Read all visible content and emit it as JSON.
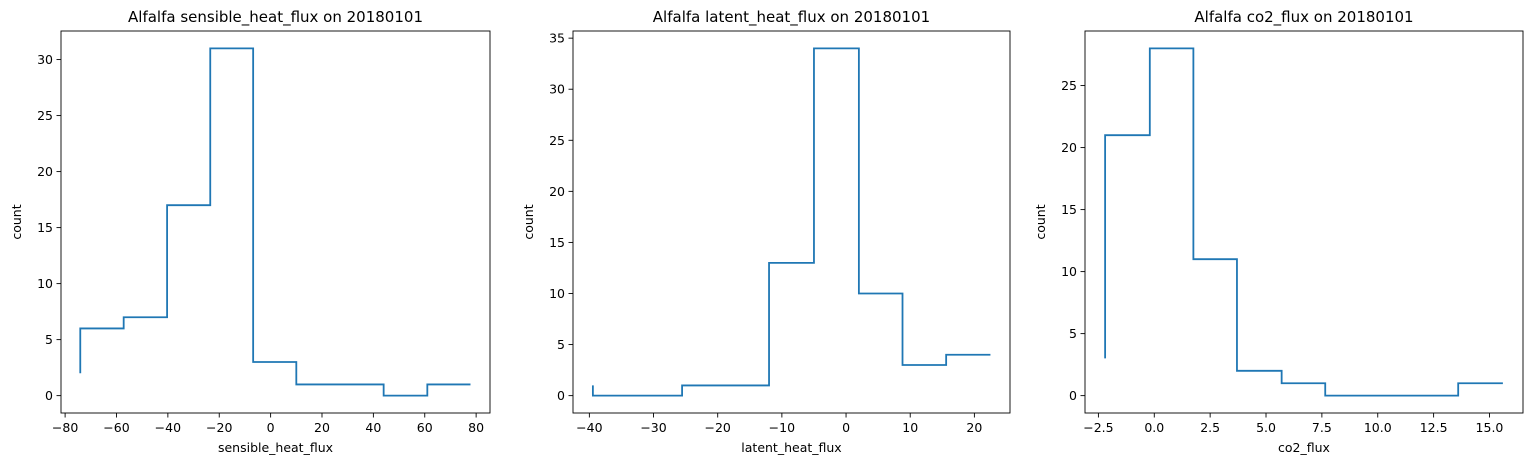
{
  "colors": {
    "line": "#1f77b4"
  },
  "chart_data": [
    {
      "type": "step",
      "title": "Alfalfa sensible_heat_flux on 20180101",
      "xlabel": "sensible_heat_flux",
      "ylabel": "count",
      "xlim": [
        -81.6,
        85.4
      ],
      "ylim": [
        -1.55,
        32.55
      ],
      "xticks": [
        -80,
        -60,
        -40,
        -20,
        0,
        20,
        40,
        60,
        80
      ],
      "xtick_labels": [
        "−80",
        "−60",
        "−40",
        "−20",
        "0",
        "20",
        "40",
        "60",
        "80"
      ],
      "yticks": [
        0,
        5,
        10,
        15,
        20,
        25,
        30
      ],
      "ytick_labels": [
        "0",
        "5",
        "10",
        "15",
        "20",
        "25",
        "30"
      ],
      "points": [
        [
          -74.1,
          2
        ],
        [
          -74.1,
          6
        ],
        [
          -57.2,
          6
        ],
        [
          -57.2,
          7
        ],
        [
          -40.3,
          7
        ],
        [
          -40.3,
          17
        ],
        [
          -23.5,
          17
        ],
        [
          -23.5,
          31
        ],
        [
          -6.8,
          31
        ],
        [
          -6.8,
          3
        ],
        [
          10.0,
          3
        ],
        [
          10.0,
          1
        ],
        [
          27.0,
          1
        ],
        [
          44.0,
          1
        ],
        [
          44.0,
          0
        ],
        [
          61.0,
          0
        ],
        [
          61.0,
          1
        ],
        [
          77.8,
          1
        ]
      ]
    },
    {
      "type": "step",
      "title": "Alfalfa latent_heat_flux on 20180101",
      "xlabel": "latent_heat_flux",
      "ylabel": "count",
      "xlim": [
        -42.55,
        25.55
      ],
      "ylim": [
        -1.7,
        35.7
      ],
      "xticks": [
        -40,
        -30,
        -20,
        -10,
        0,
        10,
        20
      ],
      "xtick_labels": [
        "−40",
        "−30",
        "−20",
        "−10",
        "0",
        "10",
        "20"
      ],
      "yticks": [
        0,
        5,
        10,
        15,
        20,
        25,
        30,
        35
      ],
      "ytick_labels": [
        "0",
        "5",
        "10",
        "15",
        "20",
        "25",
        "30",
        "35"
      ],
      "points": [
        [
          -39.45,
          1
        ],
        [
          -39.45,
          0
        ],
        [
          -25.55,
          0
        ],
        [
          -25.55,
          1
        ],
        [
          -12.0,
          1
        ],
        [
          -12.0,
          13
        ],
        [
          -5.0,
          13
        ],
        [
          -5.0,
          34
        ],
        [
          2.0,
          34
        ],
        [
          2.0,
          10
        ],
        [
          8.8,
          10
        ],
        [
          8.8,
          3
        ],
        [
          15.6,
          3
        ],
        [
          15.6,
          4
        ],
        [
          22.5,
          4
        ]
      ]
    },
    {
      "type": "step",
      "title": "Alfalfa co2_flux on 20180101",
      "xlabel": "co2_flux",
      "ylabel": "count",
      "xlim": [
        -3.1,
        16.5
      ],
      "ylim": [
        -1.4,
        29.4
      ],
      "xticks": [
        -2.5,
        0.0,
        2.5,
        5.0,
        7.5,
        10.0,
        12.5,
        15.0
      ],
      "xtick_labels": [
        "−2.5",
        "0.0",
        "2.5",
        "5.0",
        "7.5",
        "10.0",
        "12.5",
        "15.0"
      ],
      "yticks": [
        0,
        5,
        10,
        15,
        20,
        25
      ],
      "ytick_labels": [
        "0",
        "5",
        "10",
        "15",
        "20",
        "25"
      ],
      "points": [
        [
          -2.2,
          3
        ],
        [
          -2.2,
          21
        ],
        [
          -0.2,
          21
        ],
        [
          -0.2,
          28
        ],
        [
          1.75,
          28
        ],
        [
          1.75,
          11
        ],
        [
          3.7,
          11
        ],
        [
          3.7,
          2
        ],
        [
          5.7,
          2
        ],
        [
          5.7,
          1
        ],
        [
          7.65,
          1
        ],
        [
          7.65,
          0
        ],
        [
          9.6,
          0
        ],
        [
          11.6,
          0
        ],
        [
          13.6,
          0
        ],
        [
          13.6,
          1
        ],
        [
          15.6,
          1
        ]
      ]
    }
  ]
}
